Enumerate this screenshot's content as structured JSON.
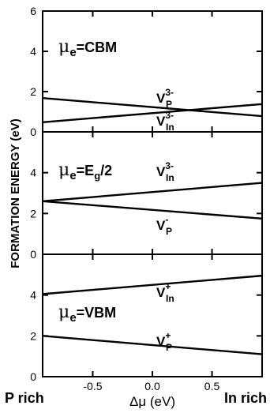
{
  "chart_data": {
    "type": "line",
    "ylabel": "FORMATION ENERGY (eV)",
    "xlabel": "Δμ (eV)",
    "x_edge_labels": {
      "left": "P rich",
      "right": "In rich"
    },
    "xlim": [
      -0.92,
      0.92
    ],
    "x_ticks": [
      -0.5,
      0.0,
      0.5
    ],
    "x_tick_labels": [
      "-0.5",
      "0.0",
      "0.5"
    ],
    "panels": [
      {
        "label": {
          "mu": "μ",
          "sub": "e",
          "rest": "=CBM"
        },
        "ylim": [
          0,
          6
        ],
        "y_ticks": [
          0,
          2,
          4,
          6
        ],
        "series": [
          {
            "name": {
              "base": "V",
              "sub": "P",
              "sup": "3-"
            },
            "x": [
              -0.92,
              0.92
            ],
            "y": [
              1.68,
              0.78
            ]
          },
          {
            "name": {
              "base": "V",
              "sub": "In",
              "sup": "3-"
            },
            "x": [
              -0.92,
              0.92
            ],
            "y": [
              0.48,
              1.38
            ]
          }
        ]
      },
      {
        "label": {
          "mu": "μ",
          "sub": "e",
          "rest": "=E",
          "rest_sub": "g",
          "rest_end": "/2"
        },
        "ylim": [
          0,
          6
        ],
        "y_ticks": [
          0,
          2,
          4
        ],
        "series": [
          {
            "name": {
              "base": "V",
              "sub": "In",
              "sup": "3-"
            },
            "x": [
              -0.92,
              0.92
            ],
            "y": [
              2.6,
              3.5
            ]
          },
          {
            "name": {
              "base": "V",
              "sub": "P",
              "sup": "-"
            },
            "x": [
              -0.92,
              0.92
            ],
            "y": [
              2.6,
              1.75
            ]
          }
        ]
      },
      {
        "label": {
          "mu": "μ",
          "sub": "e",
          "rest": "=VBM"
        },
        "ylim": [
          0,
          6
        ],
        "y_ticks": [
          0,
          2,
          4
        ],
        "series": [
          {
            "name": {
              "base": "V",
              "sub": "In",
              "sup": "+"
            },
            "x": [
              -0.92,
              0.92
            ],
            "y": [
              4.05,
              4.95
            ]
          },
          {
            "name": {
              "base": "V",
              "sub": "P",
              "sup": "+"
            },
            "x": [
              -0.92,
              0.92
            ],
            "y": [
              2.0,
              1.1
            ]
          }
        ]
      }
    ],
    "grid": false,
    "legend": "none"
  }
}
